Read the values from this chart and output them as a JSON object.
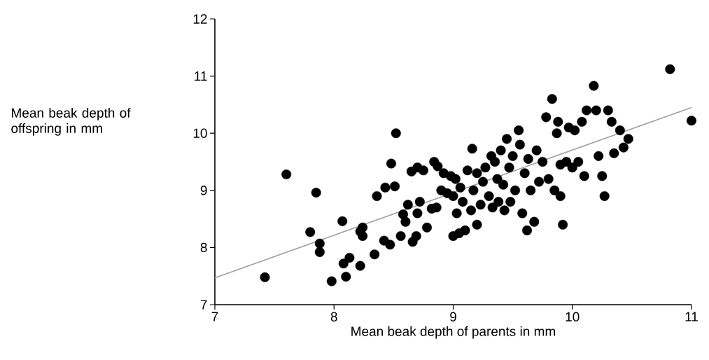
{
  "chart_data": {
    "type": "scatter",
    "xlabel": "Mean beak depth of parents in mm",
    "ylabel": "Mean beak depth of offspring in mm",
    "xlim": [
      7,
      11
    ],
    "ylim": [
      7,
      12
    ],
    "xticks": [
      7,
      8,
      9,
      10,
      11
    ],
    "yticks": [
      7,
      8,
      9,
      10,
      11,
      12
    ],
    "grid": false,
    "marker": "circle",
    "series": [
      {
        "color": "#000000",
        "x": [
          7.42,
          7.6,
          7.8,
          7.85,
          7.88,
          7.88,
          7.98,
          8.07,
          8.08,
          8.1,
          8.13,
          8.22,
          8.22,
          8.24,
          8.24,
          8.34,
          8.36,
          8.42,
          8.43,
          8.47,
          8.48,
          8.51,
          8.52,
          8.56,
          8.58,
          8.6,
          8.62,
          8.65,
          8.66,
          8.69,
          8.7,
          8.7,
          8.72,
          8.75,
          8.78,
          8.82,
          8.84,
          8.86,
          8.87,
          8.9,
          8.92,
          8.95,
          8.98,
          9.0,
          9.0,
          9.02,
          9.03,
          9.05,
          9.06,
          9.08,
          9.1,
          9.12,
          9.15,
          9.16,
          9.17,
          9.2,
          9.2,
          9.23,
          9.25,
          9.27,
          9.3,
          9.32,
          9.33,
          9.35,
          9.37,
          9.38,
          9.4,
          9.42,
          9.43,
          9.45,
          9.47,
          9.48,
          9.5,
          9.52,
          9.55,
          9.56,
          9.58,
          9.6,
          9.62,
          9.63,
          9.65,
          9.68,
          9.7,
          9.72,
          9.75,
          9.78,
          9.8,
          9.83,
          9.85,
          9.87,
          9.88,
          9.9,
          9.9,
          9.92,
          9.95,
          9.97,
          10.0,
          10.02,
          10.05,
          10.08,
          10.1,
          10.12,
          10.18,
          10.2,
          10.22,
          10.25,
          10.27,
          10.3,
          10.33,
          10.35,
          10.4,
          10.43,
          10.47,
          10.82,
          11.0
        ],
        "values": [
          7.48,
          9.28,
          8.27,
          8.96,
          8.07,
          7.92,
          7.41,
          8.46,
          7.72,
          7.49,
          7.82,
          7.68,
          8.28,
          8.35,
          8.2,
          7.88,
          8.9,
          8.12,
          9.05,
          8.05,
          9.47,
          9.07,
          10.0,
          8.2,
          8.58,
          8.45,
          8.75,
          9.33,
          8.1,
          8.2,
          9.4,
          8.6,
          8.8,
          9.35,
          8.35,
          8.68,
          9.5,
          8.7,
          9.42,
          9.0,
          9.3,
          8.95,
          9.25,
          8.2,
          8.9,
          9.2,
          8.6,
          8.25,
          9.05,
          8.8,
          8.3,
          9.35,
          8.65,
          9.73,
          9.0,
          8.4,
          9.3,
          8.75,
          9.15,
          9.4,
          8.9,
          9.6,
          8.7,
          9.5,
          9.2,
          8.8,
          9.7,
          9.1,
          8.65,
          9.9,
          9.4,
          8.8,
          9.6,
          9.0,
          10.05,
          9.8,
          8.6,
          9.3,
          8.3,
          9.55,
          9.0,
          8.45,
          9.7,
          9.15,
          9.5,
          10.28,
          9.2,
          10.6,
          9.0,
          10.0,
          10.2,
          8.9,
          9.45,
          8.4,
          9.5,
          10.1,
          9.4,
          10.05,
          9.5,
          10.2,
          9.25,
          10.4,
          10.83,
          10.4,
          9.6,
          9.25,
          8.9,
          10.4,
          10.2,
          9.65,
          10.05,
          9.75,
          9.9,
          11.12,
          10.22
        ]
      },
      {
        "type": "line",
        "color": "#a0a0a0",
        "marker": "none",
        "x": [
          7,
          11
        ],
        "values": [
          7.47,
          10.45
        ]
      }
    ]
  }
}
